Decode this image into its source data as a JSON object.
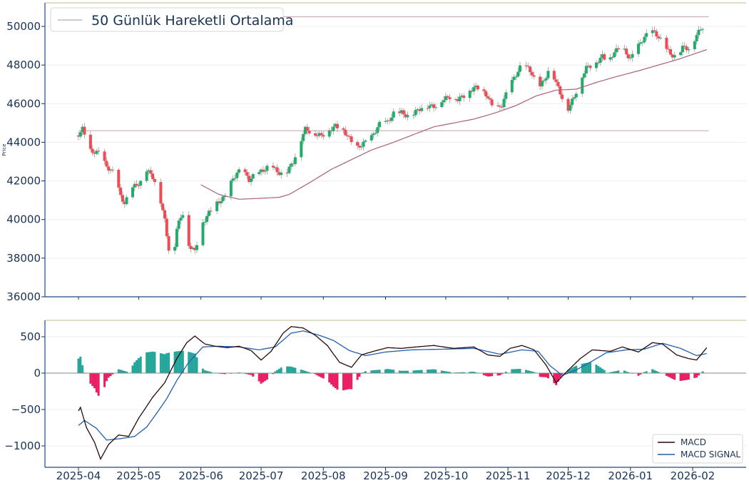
{
  "chart_data": [
    {
      "type": "candlestick",
      "ylabel": "Price",
      "ylim": [
        36000,
        51200
      ],
      "yticks": [
        36000,
        38000,
        40000,
        42000,
        44000,
        46000,
        48000,
        50000
      ],
      "legend": {
        "label": "50 Günlük Hareketli Ortalama",
        "placement": "top-left"
      },
      "horizontal_lines": [
        50500,
        44600
      ],
      "close_anchors": [
        [
          "2025-04-01",
          44350
        ],
        [
          "2025-04-03",
          44650
        ],
        [
          "2025-04-07",
          43600
        ],
        [
          "2025-04-11",
          43500
        ],
        [
          "2025-04-15",
          42700
        ],
        [
          "2025-04-19",
          42300
        ],
        [
          "2025-04-22",
          41200
        ],
        [
          "2025-04-24",
          40900
        ],
        [
          "2025-04-28",
          41700
        ],
        [
          "2025-05-02",
          41900
        ],
        [
          "2025-05-05",
          42500
        ],
        [
          "2025-05-08",
          42200
        ],
        [
          "2025-05-11",
          41500
        ],
        [
          "2025-05-14",
          40000
        ],
        [
          "2025-05-16",
          38500
        ],
        [
          "2025-05-18",
          37800
        ],
        [
          "2025-05-20",
          39500
        ],
        [
          "2025-05-23",
          40300
        ],
        [
          "2025-05-26",
          38700
        ],
        [
          "2025-05-29",
          38400
        ],
        [
          "2025-06-01",
          39700
        ],
        [
          "2025-06-05",
          40300
        ],
        [
          "2025-06-09",
          40800
        ],
        [
          "2025-06-13",
          41200
        ],
        [
          "2025-06-17",
          42200
        ],
        [
          "2025-06-21",
          42600
        ],
        [
          "2025-06-25",
          42000
        ],
        [
          "2025-06-28",
          42300
        ],
        [
          "2025-07-02",
          42600
        ],
        [
          "2025-07-06",
          42900
        ],
        [
          "2025-07-09",
          42400
        ],
        [
          "2025-07-13",
          42300
        ],
        [
          "2025-07-17",
          43000
        ],
        [
          "2025-07-20",
          44000
        ],
        [
          "2025-07-23",
          44700
        ],
        [
          "2025-07-27",
          44400
        ],
        [
          "2025-07-31",
          44300
        ],
        [
          "2025-08-03",
          44600
        ],
        [
          "2025-08-07",
          44900
        ],
        [
          "2025-08-10",
          44700
        ],
        [
          "2025-08-13",
          44300
        ],
        [
          "2025-08-17",
          43600
        ],
        [
          "2025-08-21",
          44000
        ],
        [
          "2025-08-25",
          44300
        ],
        [
          "2025-08-29",
          44900
        ],
        [
          "2025-09-02",
          45000
        ],
        [
          "2025-09-05",
          45500
        ],
        [
          "2025-09-09",
          45600
        ],
        [
          "2025-09-13",
          45300
        ],
        [
          "2025-09-17",
          45600
        ],
        [
          "2025-09-21",
          45900
        ],
        [
          "2025-09-25",
          45900
        ],
        [
          "2025-09-29",
          46200
        ],
        [
          "2025-10-03",
          46300
        ],
        [
          "2025-10-07",
          46200
        ],
        [
          "2025-10-11",
          46500
        ],
        [
          "2025-10-15",
          46900
        ],
        [
          "2025-10-18",
          46700
        ],
        [
          "2025-10-22",
          46300
        ],
        [
          "2025-10-25",
          45600
        ],
        [
          "2025-10-29",
          46000
        ],
        [
          "2025-11-01",
          46800
        ],
        [
          "2025-11-04",
          47300
        ],
        [
          "2025-11-07",
          47800
        ],
        [
          "2025-11-10",
          47900
        ],
        [
          "2025-11-13",
          47600
        ],
        [
          "2025-11-16",
          46900
        ],
        [
          "2025-11-19",
          47200
        ],
        [
          "2025-11-22",
          47900
        ],
        [
          "2025-11-25",
          47000
        ],
        [
          "2025-11-28",
          46300
        ],
        [
          "2025-12-01",
          45800
        ],
        [
          "2025-12-04",
          46400
        ],
        [
          "2025-12-07",
          47200
        ],
        [
          "2025-12-10",
          47800
        ],
        [
          "2025-12-14",
          48000
        ],
        [
          "2025-12-18",
          48500
        ],
        [
          "2025-12-21",
          48200
        ],
        [
          "2025-12-24",
          48700
        ],
        [
          "2025-12-28",
          48800
        ],
        [
          "2026-01-01",
          48300
        ],
        [
          "2026-01-04",
          48900
        ],
        [
          "2026-01-08",
          49500
        ],
        [
          "2026-01-12",
          49700
        ],
        [
          "2026-01-15",
          49400
        ],
        [
          "2026-01-18",
          49000
        ],
        [
          "2026-01-21",
          48600
        ],
        [
          "2026-01-24",
          48500
        ],
        [
          "2026-01-27",
          48900
        ],
        [
          "2026-01-30",
          48800
        ],
        [
          "2026-02-02",
          49300
        ],
        [
          "2026-02-05",
          49900
        ],
        [
          "2026-02-07",
          50100
        ],
        [
          "2026-02-08",
          50200
        ]
      ],
      "ma50_anchors": [
        [
          "2025-06-01",
          41800
        ],
        [
          "2025-06-10",
          41300
        ],
        [
          "2025-06-20",
          41050
        ],
        [
          "2025-07-01",
          41100
        ],
        [
          "2025-07-10",
          41150
        ],
        [
          "2025-07-15",
          41300
        ],
        [
          "2025-07-25",
          41900
        ],
        [
          "2025-08-05",
          42600
        ],
        [
          "2025-08-15",
          43100
        ],
        [
          "2025-08-25",
          43600
        ],
        [
          "2025-09-05",
          44000
        ],
        [
          "2025-09-15",
          44400
        ],
        [
          "2025-09-25",
          44800
        ],
        [
          "2025-10-05",
          45000
        ],
        [
          "2025-10-15",
          45200
        ],
        [
          "2025-10-25",
          45500
        ],
        [
          "2025-11-05",
          45900
        ],
        [
          "2025-11-15",
          46400
        ],
        [
          "2025-11-25",
          46700
        ],
        [
          "2025-12-05",
          46750
        ],
        [
          "2025-12-15",
          47100
        ],
        [
          "2025-12-25",
          47400
        ],
        [
          "2026-01-05",
          47700
        ],
        [
          "2026-01-15",
          48000
        ],
        [
          "2026-01-25",
          48300
        ],
        [
          "2026-02-08",
          48800
        ]
      ]
    },
    {
      "type": "line+bar",
      "ylim": [
        -1250,
        730
      ],
      "yticks": [
        -1000,
        -500,
        0,
        500
      ],
      "xticks": [
        "2025-04",
        "2025-05",
        "2025-06",
        "2025-07",
        "2025-08",
        "2025-09",
        "2025-10",
        "2025-11",
        "2025-12",
        "2026-01",
        "2026-02"
      ],
      "series": [
        {
          "name": "MACD",
          "color": "#2a0808",
          "anchors": [
            [
              "2025-04-01",
              -520
            ],
            [
              "2025-04-02",
              -470
            ],
            [
              "2025-04-05",
              -750
            ],
            [
              "2025-04-09",
              -950
            ],
            [
              "2025-04-12",
              -1180
            ],
            [
              "2025-04-16",
              -980
            ],
            [
              "2025-04-21",
              -850
            ],
            [
              "2025-04-26",
              -870
            ],
            [
              "2025-05-01",
              -620
            ],
            [
              "2025-05-08",
              -330
            ],
            [
              "2025-05-14",
              -130
            ],
            [
              "2025-05-20",
              200
            ],
            [
              "2025-05-25",
              420
            ],
            [
              "2025-05-29",
              510
            ],
            [
              "2025-06-03",
              400
            ],
            [
              "2025-06-08",
              370
            ],
            [
              "2025-06-14",
              350
            ],
            [
              "2025-06-20",
              370
            ],
            [
              "2025-06-26",
              310
            ],
            [
              "2025-07-01",
              180
            ],
            [
              "2025-07-06",
              300
            ],
            [
              "2025-07-12",
              550
            ],
            [
              "2025-07-16",
              640
            ],
            [
              "2025-07-22",
              620
            ],
            [
              "2025-07-28",
              520
            ],
            [
              "2025-08-03",
              380
            ],
            [
              "2025-08-09",
              150
            ],
            [
              "2025-08-15",
              80
            ],
            [
              "2025-08-20",
              250
            ],
            [
              "2025-08-26",
              300
            ],
            [
              "2025-09-02",
              350
            ],
            [
              "2025-09-09",
              340
            ],
            [
              "2025-09-16",
              360
            ],
            [
              "2025-09-25",
              380
            ],
            [
              "2025-10-05",
              340
            ],
            [
              "2025-10-15",
              360
            ],
            [
              "2025-10-22",
              250
            ],
            [
              "2025-10-28",
              230
            ],
            [
              "2025-11-02",
              340
            ],
            [
              "2025-11-08",
              380
            ],
            [
              "2025-11-14",
              320
            ],
            [
              "2025-11-20",
              110
            ],
            [
              "2025-11-25",
              -130
            ],
            [
              "2025-12-01",
              40
            ],
            [
              "2025-12-07",
              200
            ],
            [
              "2025-12-13",
              320
            ],
            [
              "2025-12-22",
              300
            ],
            [
              "2025-12-28",
              360
            ],
            [
              "2026-01-05",
              290
            ],
            [
              "2026-01-12",
              420
            ],
            [
              "2026-01-17",
              400
            ],
            [
              "2026-01-24",
              250
            ],
            [
              "2026-01-30",
              200
            ],
            [
              "2026-02-03",
              180
            ],
            [
              "2026-02-08",
              350
            ]
          ]
        },
        {
          "name": "MACD SIGNAL",
          "color": "#2060b0",
          "anchors": [
            [
              "2025-04-01",
              -720
            ],
            [
              "2025-04-04",
              -650
            ],
            [
              "2025-04-10",
              -760
            ],
            [
              "2025-04-15",
              -920
            ],
            [
              "2025-04-22",
              -900
            ],
            [
              "2025-04-29",
              -870
            ],
            [
              "2025-05-05",
              -740
            ],
            [
              "2025-05-10",
              -550
            ],
            [
              "2025-05-15",
              -350
            ],
            [
              "2025-05-20",
              -100
            ],
            [
              "2025-05-26",
              150
            ],
            [
              "2025-06-02",
              360
            ],
            [
              "2025-06-10",
              370
            ],
            [
              "2025-06-20",
              360
            ],
            [
              "2025-06-30",
              320
            ],
            [
              "2025-07-08",
              360
            ],
            [
              "2025-07-16",
              550
            ],
            [
              "2025-07-22",
              580
            ],
            [
              "2025-07-30",
              520
            ],
            [
              "2025-08-06",
              450
            ],
            [
              "2025-08-14",
              310
            ],
            [
              "2025-08-22",
              240
            ],
            [
              "2025-09-01",
              290
            ],
            [
              "2025-09-14",
              320
            ],
            [
              "2025-10-01",
              330
            ],
            [
              "2025-10-15",
              340
            ],
            [
              "2025-10-28",
              260
            ],
            [
              "2025-11-08",
              320
            ],
            [
              "2025-11-16",
              300
            ],
            [
              "2025-11-22",
              100
            ],
            [
              "2025-11-28",
              -30
            ],
            [
              "2025-12-04",
              30
            ],
            [
              "2025-12-12",
              150
            ],
            [
              "2025-12-20",
              280
            ],
            [
              "2025-12-30",
              320
            ],
            [
              "2026-01-08",
              330
            ],
            [
              "2026-01-17",
              410
            ],
            [
              "2026-01-26",
              340
            ],
            [
              "2026-02-03",
              240
            ],
            [
              "2026-02-08",
              270
            ]
          ]
        }
      ],
      "histogram_colors": {
        "positive": "#26a69a",
        "negative": "#e91e63"
      },
      "legend": {
        "placement": "bottom-right"
      }
    }
  ]
}
